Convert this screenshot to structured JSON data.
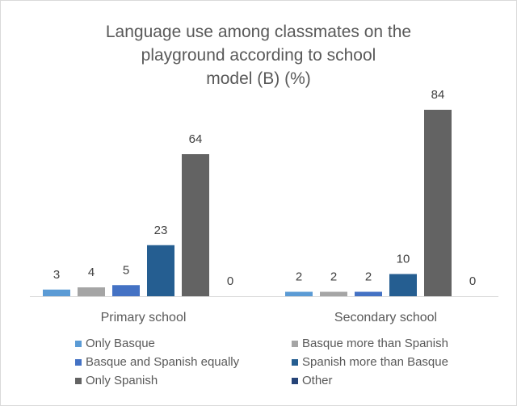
{
  "chart_data": {
    "type": "bar",
    "title_lines": [
      "Language use among classmates on the",
      "playground according to school",
      "model (B) (%)"
    ],
    "categories": [
      "Primary school",
      "Secondary school"
    ],
    "series": [
      {
        "name": "Only Basque",
        "values": [
          3,
          2
        ],
        "color": "#5b9bd5"
      },
      {
        "name": "Basque more than Spanish",
        "values": [
          4,
          2
        ],
        "color": "#a5a5a5"
      },
      {
        "name": "Basque and Spanish equally",
        "values": [
          5,
          2
        ],
        "color": "#4472c4"
      },
      {
        "name": "Spanish more than Basque",
        "values": [
          23,
          10
        ],
        "color": "#255e91"
      },
      {
        "name": "Only Spanish",
        "values": [
          64,
          84
        ],
        "color": "#636363"
      },
      {
        "name": "Other",
        "values": [
          0,
          0
        ],
        "color": "#264478"
      }
    ],
    "ylim": [
      0,
      100
    ],
    "grid": false,
    "legend": "bottom",
    "data_labels": true
  }
}
